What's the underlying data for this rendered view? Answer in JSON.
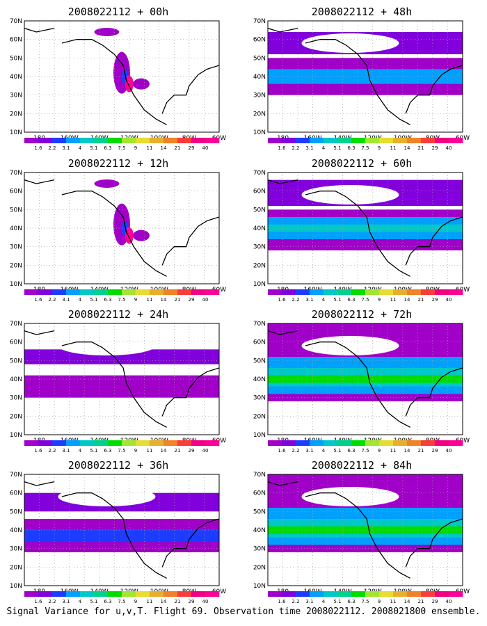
{
  "panels": [
    {
      "title": "2008022112 + 00h",
      "forecast_hour": 0,
      "coverage": "sparse"
    },
    {
      "title": "2008022112 + 48h",
      "forecast_hour": 48,
      "coverage": "medium"
    },
    {
      "title": "2008022112 + 12h",
      "forecast_hour": 12,
      "coverage": "sparse"
    },
    {
      "title": "2008022112 + 60h",
      "forecast_hour": 60,
      "coverage": "medium-high"
    },
    {
      "title": "2008022112 + 24h",
      "forecast_hour": 24,
      "coverage": "low"
    },
    {
      "title": "2008022112 + 72h",
      "forecast_hour": 72,
      "coverage": "high"
    },
    {
      "title": "2008022112 + 36h",
      "forecast_hour": 36,
      "coverage": "low-medium"
    },
    {
      "title": "2008022112 + 84h",
      "forecast_hour": 84,
      "coverage": "high"
    }
  ],
  "lat_labels": [
    "70N",
    "60N",
    "50N",
    "40N",
    "30N",
    "20N",
    "10N"
  ],
  "lon_labels": [
    "180",
    "160W",
    "140W",
    "120W",
    "100W",
    "80W",
    "60W"
  ],
  "colorbar": {
    "labels": [
      "1.6",
      "2.2",
      "3.1",
      "4",
      "5.1",
      "6.3",
      "7.5",
      "9",
      "11",
      "14",
      "21",
      "29",
      "40"
    ],
    "colors": [
      "#a000c8",
      "#8200dc",
      "#1e3cff",
      "#00a0ff",
      "#00c8c8",
      "#00d28c",
      "#00dc00",
      "#a0e632",
      "#e6dc32",
      "#e6af2d",
      "#f08228",
      "#fa3c3c",
      "#f00082",
      "#ff0096"
    ]
  },
  "footer": "Signal Variance for u,v,T. Flight 69. Observation time 2008022112. 2008021800 ensemble."
}
